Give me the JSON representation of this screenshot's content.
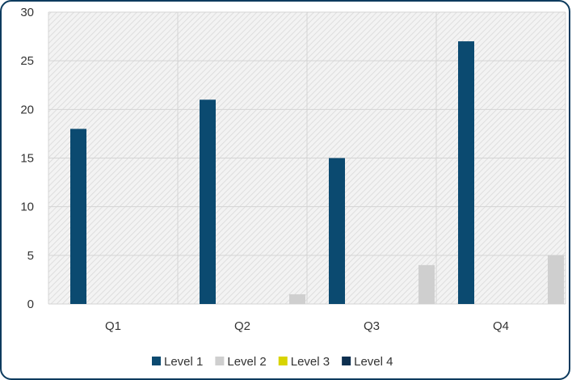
{
  "chart_data": {
    "type": "bar",
    "categories": [
      "Q1",
      "Q2",
      "Q3",
      "Q4"
    ],
    "series": [
      {
        "name": "Level 1",
        "color": "#0b4a70",
        "values": [
          18,
          21,
          15,
          27
        ]
      },
      {
        "name": "Level 2",
        "color": "#cfcfcf",
        "values": [
          0,
          1,
          4,
          5
        ]
      },
      {
        "name": "Level 3",
        "color": "#d8d400",
        "values": [
          0,
          0,
          0,
          0
        ]
      },
      {
        "name": "Level 4",
        "color": "#0d2f4f",
        "values": [
          0,
          0,
          0,
          0
        ]
      }
    ],
    "title": "",
    "xlabel": "",
    "ylabel": "",
    "ylim": [
      0,
      30
    ],
    "yticks": [
      0,
      5,
      10,
      15,
      20,
      25,
      30
    ],
    "grid": true,
    "legend_position": "bottom",
    "plot_background": "hatched light gray"
  }
}
